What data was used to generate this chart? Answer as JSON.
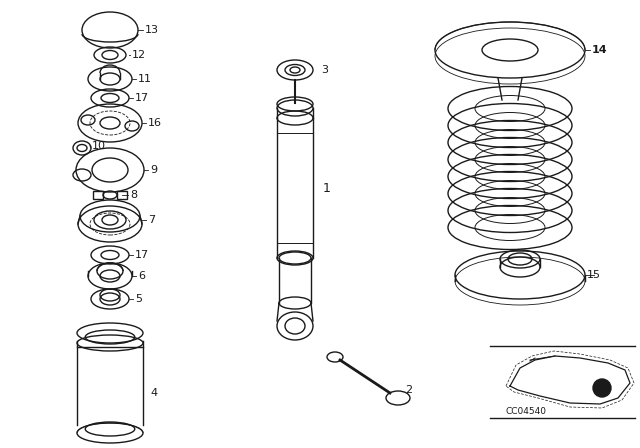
{
  "bg_color": "#ffffff",
  "line_color": "#1a1a1a",
  "fig_width": 6.4,
  "fig_height": 4.48,
  "dpi": 100,
  "code_label": "CC04540"
}
